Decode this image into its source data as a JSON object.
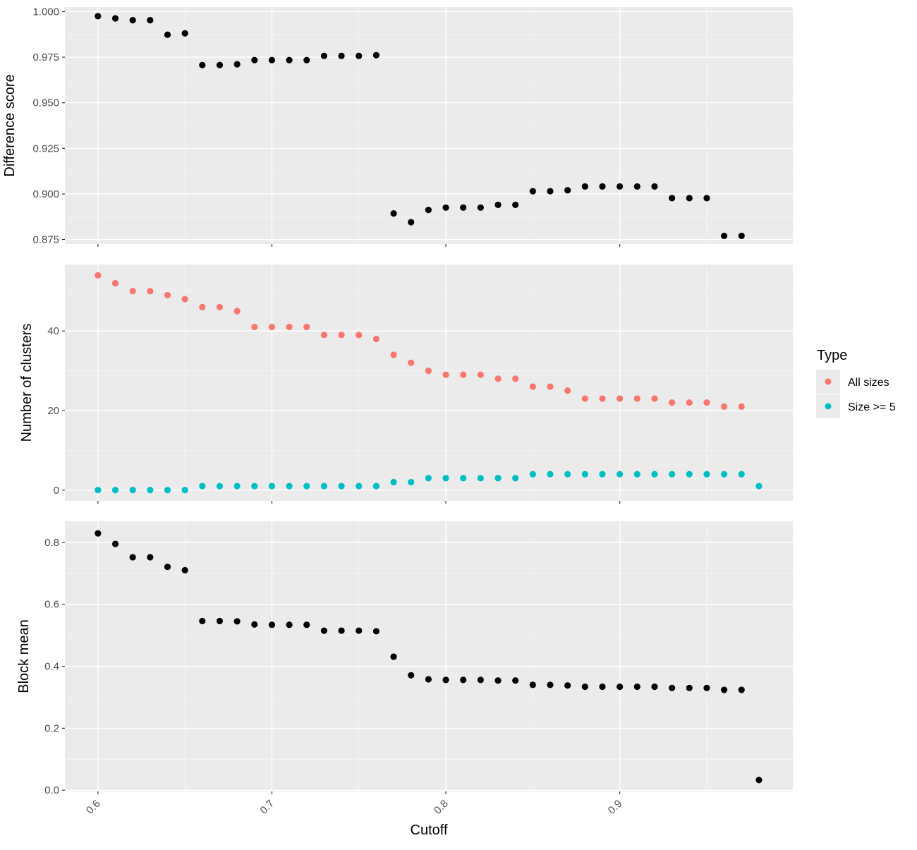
{
  "chart_data": {
    "type": "scatter",
    "xlabel": "Cutoff",
    "x_ticks": [
      0.6,
      0.7,
      0.8,
      0.9
    ],
    "x_tick_labels": [
      "0.6",
      "0.7",
      "0.8",
      "0.9"
    ],
    "xlim": [
      0.581,
      0.9995
    ],
    "grid": true,
    "legend": {
      "title": "Type",
      "placement": "right",
      "entries": [
        {
          "name": "All sizes",
          "color": "#F8766D"
        },
        {
          "name": "Size >= 5",
          "color": "#00BFC4"
        }
      ]
    },
    "panels": [
      {
        "ylabel": "Difference score",
        "ylim": [
          0.8725,
          1.0025
        ],
        "y_ticks": [
          0.875,
          0.9,
          0.925,
          0.95,
          0.975,
          1.0
        ],
        "y_tick_labels": [
          "0.875",
          "0.900",
          "0.925",
          "0.950",
          "0.975",
          "1.000"
        ],
        "series": [
          {
            "color": "#000000",
            "points": [
              [
                0.6,
                0.9975
              ],
              [
                0.61,
                0.9963
              ],
              [
                0.62,
                0.9953
              ],
              [
                0.63,
                0.9953
              ],
              [
                0.64,
                0.9873
              ],
              [
                0.65,
                0.9881
              ],
              [
                0.66,
                0.9707
              ],
              [
                0.67,
                0.9707
              ],
              [
                0.68,
                0.9711
              ],
              [
                0.69,
                0.9734
              ],
              [
                0.7,
                0.9734
              ],
              [
                0.71,
                0.9734
              ],
              [
                0.72,
                0.9734
              ],
              [
                0.73,
                0.9757
              ],
              [
                0.74,
                0.9757
              ],
              [
                0.75,
                0.9757
              ],
              [
                0.76,
                0.9761
              ],
              [
                0.77,
                0.8893
              ],
              [
                0.78,
                0.8845
              ],
              [
                0.79,
                0.8912
              ],
              [
                0.8,
                0.8925
              ],
              [
                0.81,
                0.8925
              ],
              [
                0.82,
                0.8925
              ],
              [
                0.83,
                0.894
              ],
              [
                0.84,
                0.894
              ],
              [
                0.85,
                0.9015
              ],
              [
                0.86,
                0.9015
              ],
              [
                0.87,
                0.902
              ],
              [
                0.88,
                0.9041
              ],
              [
                0.89,
                0.9041
              ],
              [
                0.9,
                0.9041
              ],
              [
                0.91,
                0.9041
              ],
              [
                0.92,
                0.9041
              ],
              [
                0.93,
                0.8977
              ],
              [
                0.94,
                0.8977
              ],
              [
                0.95,
                0.8977
              ],
              [
                0.96,
                0.877
              ],
              [
                0.97,
                0.877
              ]
            ]
          }
        ]
      },
      {
        "ylabel": "Number of clusters",
        "ylim": [
          -2.7,
          56.7
        ],
        "y_ticks": [
          0,
          20,
          40
        ],
        "y_tick_labels": [
          "0",
          "20",
          "40"
        ],
        "series": [
          {
            "name": "All sizes",
            "color": "#F8766D",
            "points": [
              [
                0.6,
                54
              ],
              [
                0.61,
                52
              ],
              [
                0.62,
                50
              ],
              [
                0.63,
                50
              ],
              [
                0.64,
                49
              ],
              [
                0.65,
                48
              ],
              [
                0.66,
                46
              ],
              [
                0.67,
                46
              ],
              [
                0.68,
                45
              ],
              [
                0.69,
                41
              ],
              [
                0.7,
                41
              ],
              [
                0.71,
                41
              ],
              [
                0.72,
                41
              ],
              [
                0.73,
                39
              ],
              [
                0.74,
                39
              ],
              [
                0.75,
                39
              ],
              [
                0.76,
                38
              ],
              [
                0.77,
                34
              ],
              [
                0.78,
                32
              ],
              [
                0.79,
                30
              ],
              [
                0.8,
                29
              ],
              [
                0.81,
                29
              ],
              [
                0.82,
                29
              ],
              [
                0.83,
                28
              ],
              [
                0.84,
                28
              ],
              [
                0.85,
                26
              ],
              [
                0.86,
                26
              ],
              [
                0.87,
                25
              ],
              [
                0.88,
                23
              ],
              [
                0.89,
                23
              ],
              [
                0.9,
                23
              ],
              [
                0.91,
                23
              ],
              [
                0.92,
                23
              ],
              [
                0.93,
                22
              ],
              [
                0.94,
                22
              ],
              [
                0.95,
                22
              ],
              [
                0.96,
                21
              ],
              [
                0.97,
                21
              ]
            ]
          },
          {
            "name": "Size >= 5",
            "color": "#00BFC4",
            "points": [
              [
                0.6,
                0
              ],
              [
                0.61,
                0
              ],
              [
                0.62,
                0
              ],
              [
                0.63,
                0
              ],
              [
                0.64,
                0
              ],
              [
                0.65,
                0
              ],
              [
                0.66,
                1
              ],
              [
                0.67,
                1
              ],
              [
                0.68,
                1
              ],
              [
                0.69,
                1
              ],
              [
                0.7,
                1
              ],
              [
                0.71,
                1
              ],
              [
                0.72,
                1
              ],
              [
                0.73,
                1
              ],
              [
                0.74,
                1
              ],
              [
                0.75,
                1
              ],
              [
                0.76,
                1
              ],
              [
                0.77,
                2
              ],
              [
                0.78,
                2
              ],
              [
                0.79,
                3
              ],
              [
                0.8,
                3
              ],
              [
                0.81,
                3
              ],
              [
                0.82,
                3
              ],
              [
                0.83,
                3
              ],
              [
                0.84,
                3
              ],
              [
                0.85,
                4
              ],
              [
                0.86,
                4
              ],
              [
                0.87,
                4
              ],
              [
                0.88,
                4
              ],
              [
                0.89,
                4
              ],
              [
                0.9,
                4
              ],
              [
                0.91,
                4
              ],
              [
                0.92,
                4
              ],
              [
                0.93,
                4
              ],
              [
                0.94,
                4
              ],
              [
                0.95,
                4
              ],
              [
                0.96,
                4
              ],
              [
                0.97,
                4
              ],
              [
                0.98,
                1
              ]
            ]
          }
        ]
      },
      {
        "ylabel": "Block mean",
        "ylim": [
          -0.004,
          0.868
        ],
        "y_ticks": [
          0.0,
          0.2,
          0.4,
          0.6,
          0.8
        ],
        "y_tick_labels": [
          "0.0",
          "0.2",
          "0.4",
          "0.6",
          "0.8"
        ],
        "series": [
          {
            "color": "#000000",
            "points": [
              [
                0.6,
                0.829
              ],
              [
                0.61,
                0.795
              ],
              [
                0.62,
                0.752
              ],
              [
                0.63,
                0.752
              ],
              [
                0.64,
                0.721
              ],
              [
                0.65,
                0.71
              ],
              [
                0.66,
                0.546
              ],
              [
                0.67,
                0.546
              ],
              [
                0.68,
                0.545
              ],
              [
                0.69,
                0.535
              ],
              [
                0.7,
                0.534
              ],
              [
                0.71,
                0.534
              ],
              [
                0.72,
                0.534
              ],
              [
                0.73,
                0.515
              ],
              [
                0.74,
                0.515
              ],
              [
                0.75,
                0.515
              ],
              [
                0.76,
                0.513
              ],
              [
                0.77,
                0.431
              ],
              [
                0.78,
                0.371
              ],
              [
                0.79,
                0.358
              ],
              [
                0.8,
                0.356
              ],
              [
                0.81,
                0.356
              ],
              [
                0.82,
                0.356
              ],
              [
                0.83,
                0.354
              ],
              [
                0.84,
                0.354
              ],
              [
                0.85,
                0.34
              ],
              [
                0.86,
                0.34
              ],
              [
                0.87,
                0.338
              ],
              [
                0.88,
                0.334
              ],
              [
                0.89,
                0.334
              ],
              [
                0.9,
                0.334
              ],
              [
                0.91,
                0.334
              ],
              [
                0.92,
                0.334
              ],
              [
                0.93,
                0.33
              ],
              [
                0.94,
                0.33
              ],
              [
                0.95,
                0.33
              ],
              [
                0.96,
                0.324
              ],
              [
                0.97,
                0.324
              ],
              [
                0.98,
                0.033
              ]
            ]
          }
        ]
      }
    ]
  }
}
